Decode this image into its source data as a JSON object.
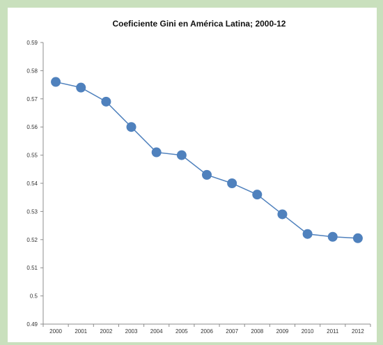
{
  "colors": {
    "frame": "#c9e0bd",
    "panel": "#ffffff",
    "series": "#4f81bd",
    "axis": "#8c8c8c"
  },
  "chart_data": {
    "type": "line",
    "title": "Coeficiente Gini en América Latina; 2000-12",
    "xlabel": "",
    "ylabel": "",
    "x": [
      "2000",
      "2001",
      "2002",
      "2003",
      "2004",
      "2005",
      "2006",
      "2007",
      "2008",
      "2009",
      "2010",
      "2011",
      "2012"
    ],
    "series": [
      {
        "values": [
          0.576,
          0.574,
          0.569,
          0.56,
          0.551,
          0.55,
          0.543,
          0.54,
          0.536,
          0.529,
          0.522,
          0.521,
          0.5205
        ],
        "marker": "circle"
      }
    ],
    "ylim": [
      0.49,
      0.59
    ],
    "yticks": [
      0.49,
      0.5,
      0.51,
      0.52,
      0.53,
      0.54,
      0.55,
      0.56,
      0.57,
      0.58,
      0.59
    ],
    "ytick_labels": [
      "0.49",
      "0.5",
      "0.51",
      "0.52",
      "0.53",
      "0.54",
      "0.55",
      "0.56",
      "0.57",
      "0.58",
      "0.59"
    ],
    "grid": false,
    "legend": "none"
  }
}
